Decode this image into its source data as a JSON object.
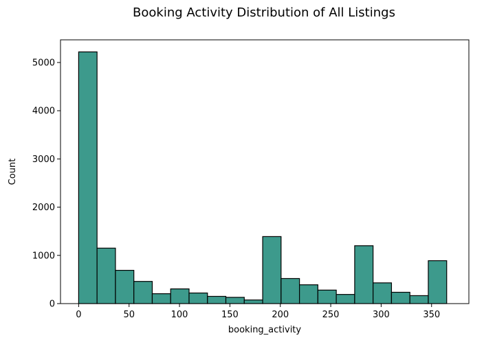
{
  "chart_data": {
    "type": "bar",
    "title": "Booking Activity Distribution of All Listings",
    "xlabel": "booking_activity",
    "ylabel": "Count",
    "xlim": [
      -18,
      387
    ],
    "ylim": [
      0,
      5470
    ],
    "xticks": [
      0,
      50,
      100,
      150,
      200,
      250,
      300,
      350
    ],
    "yticks": [
      0,
      1000,
      2000,
      3000,
      4000,
      5000
    ],
    "bin_edges": [
      0,
      18.25,
      36.5,
      54.75,
      73,
      91.25,
      109.5,
      127.75,
      146,
      164.25,
      182.5,
      200.75,
      219,
      237.25,
      255.5,
      273.75,
      292,
      310.25,
      328.5,
      346.75,
      365
    ],
    "values": [
      5220,
      1150,
      690,
      460,
      205,
      305,
      220,
      150,
      130,
      75,
      1390,
      520,
      390,
      280,
      190,
      1200,
      430,
      235,
      165,
      890
    ],
    "bar_color": "#3d9a8c",
    "edge_color": "#000000",
    "grid": false,
    "legend": "none"
  }
}
